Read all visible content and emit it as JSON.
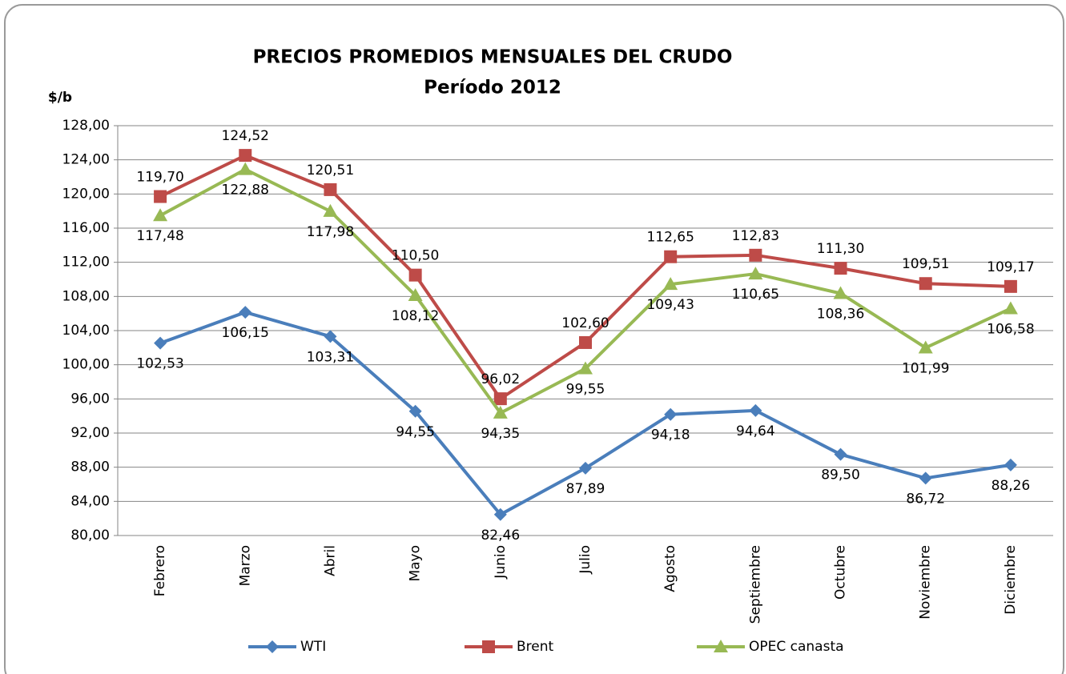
{
  "chart_data": {
    "type": "line",
    "title": "PRECIOS PROMEDIOS MENSUALES DEL CRUDO",
    "subtitle": "Período 2012",
    "y_label": "$/b",
    "categories": [
      "Febrero",
      "Marzo",
      "Abril",
      "Mayo",
      "Junio",
      "Julio",
      "Agosto",
      "Septiembre",
      "Octubre",
      "Noviembre",
      "Diciembre"
    ],
    "series": [
      {
        "name": "WTI",
        "color": "#4a7ebb",
        "marker": "diamond",
        "label_position": "below",
        "values": [
          102.53,
          106.15,
          103.31,
          94.55,
          82.46,
          87.89,
          94.18,
          94.64,
          89.5,
          86.72,
          88.26
        ],
        "value_labels": [
          "102,53",
          "106,15",
          "103,31",
          "94,55",
          "82,46",
          "87,89",
          "94,18",
          "94,64",
          "89,50",
          "86,72",
          "88,26"
        ]
      },
      {
        "name": "Brent",
        "color": "#be4b48",
        "marker": "square",
        "label_position": "above",
        "values": [
          119.7,
          124.52,
          120.51,
          110.5,
          96.02,
          102.6,
          112.65,
          112.83,
          111.3,
          109.51,
          109.17
        ],
        "value_labels": [
          "119,70",
          "124,52",
          "120,51",
          "110,50",
          "96,02",
          "102,60",
          "112,65",
          "112,83",
          "111,30",
          "109,51",
          "109,17"
        ]
      },
      {
        "name": "OPEC canasta",
        "color": "#98b954",
        "marker": "triangle",
        "label_position": "below",
        "values": [
          117.48,
          122.88,
          117.98,
          108.12,
          94.35,
          99.55,
          109.43,
          110.65,
          108.36,
          101.99,
          106.58
        ],
        "value_labels": [
          "117,48",
          "122,88",
          "117,98",
          "108,12",
          "94,35",
          "99,55",
          "109,43",
          "110,65",
          "108,36",
          "101,99",
          "106,58"
        ]
      }
    ],
    "ylim": [
      80,
      128
    ],
    "yticks": [
      {
        "value": 80,
        "label": "80,00"
      },
      {
        "value": 84,
        "label": "84,00"
      },
      {
        "value": 88,
        "label": "88,00"
      },
      {
        "value": 92,
        "label": "92,00"
      },
      {
        "value": 96,
        "label": "96,00"
      },
      {
        "value": 100,
        "label": "100,00"
      },
      {
        "value": 104,
        "label": "104,00"
      },
      {
        "value": 108,
        "label": "108,00"
      },
      {
        "value": 112,
        "label": "112,00"
      },
      {
        "value": 116,
        "label": "116,00"
      },
      {
        "value": 120,
        "label": "120,00"
      },
      {
        "value": 124,
        "label": "124,00"
      },
      {
        "value": 128,
        "label": "128,00"
      }
    ],
    "grid": true,
    "legend": "bottom"
  }
}
